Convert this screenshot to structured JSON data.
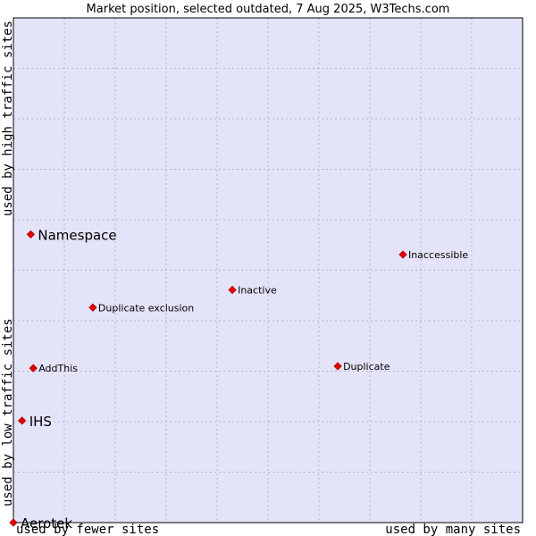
{
  "chart_data": {
    "type": "scatter",
    "title": "Market position, selected outdated, 7 Aug 2025, W3Techs.com",
    "xlabel_left": "used by fewer sites",
    "xlabel_right": "used by many sites",
    "ylabel_bottom": "used by low traffic sites",
    "ylabel_top": "used by high traffic sites",
    "xlim": [
      0,
      100
    ],
    "ylim": [
      0,
      100
    ],
    "grid": true,
    "colors": {
      "plot_bg": "#e4e4f8",
      "marker": "#e60000",
      "grid": "#b4b4d2",
      "border": "#000000"
    },
    "points": [
      {
        "label": "Namespace",
        "x": 3.4,
        "y": 57.1,
        "emphasis": true
      },
      {
        "label": "Inaccessible",
        "x": 76.5,
        "y": 53.1,
        "emphasis": false
      },
      {
        "label": "Inactive",
        "x": 43.0,
        "y": 46.1,
        "emphasis": false
      },
      {
        "label": "Duplicate exclusion",
        "x": 15.6,
        "y": 42.6,
        "emphasis": false
      },
      {
        "label": "AddThis",
        "x": 3.9,
        "y": 30.6,
        "emphasis": false
      },
      {
        "label": "Duplicate",
        "x": 63.7,
        "y": 31.0,
        "emphasis": false
      },
      {
        "label": "IHS",
        "x": 1.7,
        "y": 20.2,
        "emphasis": true
      },
      {
        "label": "Aerotek",
        "x": 0.0,
        "y": 0.0,
        "emphasis": true
      }
    ]
  }
}
